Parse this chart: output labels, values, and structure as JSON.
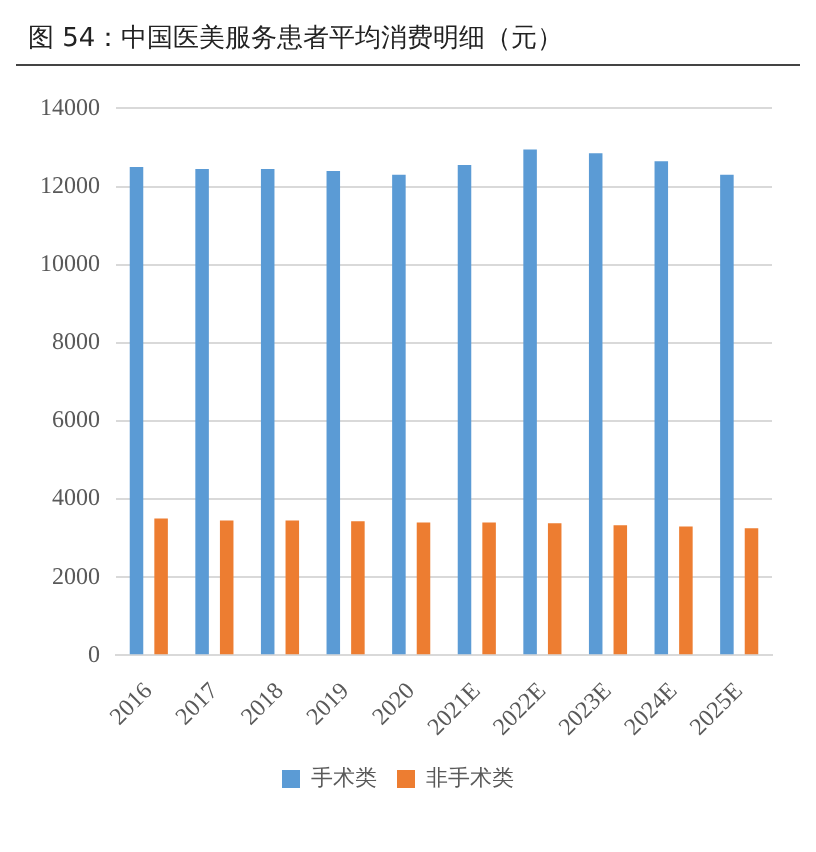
{
  "chart_data": {
    "type": "bar",
    "title": "图 54：中国医美服务患者平均消费明细（元）",
    "categories": [
      "2016",
      "2017",
      "2018",
      "2019",
      "2020",
      "2021E",
      "2022E",
      "2023E",
      "2024E",
      "2025E"
    ],
    "series": [
      {
        "name": "手术类",
        "color": "#5b9bd5",
        "values": [
          12500,
          12450,
          12450,
          12400,
          12300,
          12550,
          12950,
          12850,
          12650,
          12300
        ]
      },
      {
        "name": "非手术类",
        "color": "#ed7d31",
        "values": [
          3500,
          3450,
          3450,
          3430,
          3400,
          3400,
          3380,
          3330,
          3300,
          3250
        ]
      }
    ],
    "ylim": [
      0,
      14000
    ],
    "yticks": [
      0,
      2000,
      4000,
      6000,
      8000,
      10000,
      12000,
      14000
    ],
    "grid": "y",
    "legend": "bottom"
  }
}
